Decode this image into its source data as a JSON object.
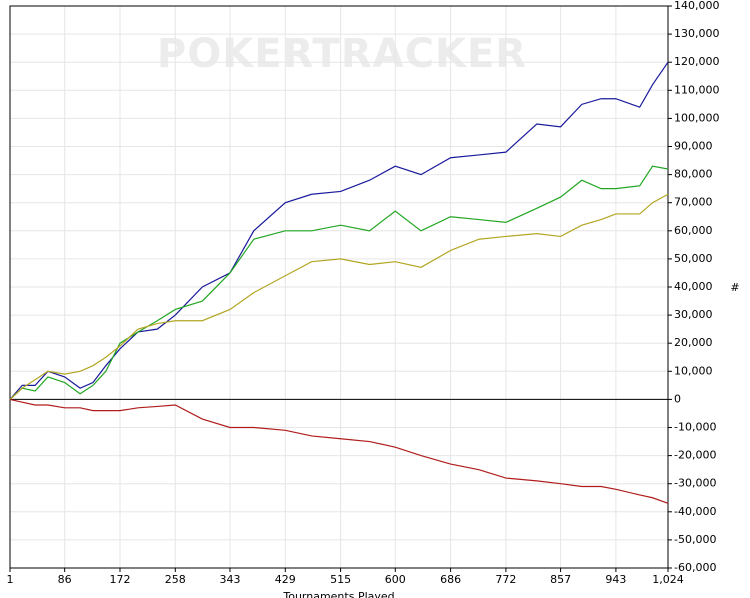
{
  "chart_data": {
    "type": "line",
    "watermark": "POKERTRACKER",
    "xlabel": "Tournaments Played",
    "ylabel": "#",
    "x": [
      1,
      20,
      40,
      60,
      86,
      110,
      130,
      150,
      172,
      200,
      230,
      258,
      300,
      343,
      380,
      429,
      470,
      515,
      560,
      600,
      640,
      686,
      730,
      772,
      820,
      857,
      890,
      920,
      943,
      980,
      1000,
      1024
    ],
    "series": [
      {
        "color": "#1a1a9c",
        "values": [
          0,
          5000,
          5000,
          10000,
          8000,
          4000,
          6000,
          12000,
          18000,
          24000,
          25000,
          30000,
          40000,
          45000,
          60000,
          70000,
          73000,
          74000,
          78000,
          83000,
          80000,
          86000,
          87000,
          88000,
          98000,
          97000,
          105000,
          107000,
          107000,
          104000,
          112000,
          120000
        ]
      },
      {
        "color": "#22a622",
        "values": [
          0,
          4000,
          3000,
          8000,
          6000,
          2000,
          5000,
          10000,
          20000,
          24000,
          28000,
          32000,
          35000,
          45000,
          57000,
          60000,
          60000,
          62000,
          60000,
          67000,
          60000,
          65000,
          64000,
          63000,
          68000,
          72000,
          78000,
          75000,
          75000,
          76000,
          83000,
          82000
        ]
      },
      {
        "color": "#b3a623",
        "values": [
          0,
          4000,
          7000,
          10000,
          9000,
          10000,
          12000,
          15000,
          19000,
          25000,
          27000,
          28000,
          28000,
          32000,
          38000,
          44000,
          49000,
          50000,
          48000,
          49000,
          47000,
          53000,
          57000,
          58000,
          59000,
          58000,
          62000,
          64000,
          66000,
          66000,
          70000,
          73000
        ]
      },
      {
        "color": "#b01c1c",
        "values": [
          0,
          -1000,
          -2000,
          -2000,
          -3000,
          -3000,
          -4000,
          -4000,
          -4000,
          -3000,
          -2500,
          -2000,
          -7000,
          -10000,
          -10000,
          -11000,
          -13000,
          -14000,
          -15000,
          -17000,
          -20000,
          -23000,
          -25000,
          -28000,
          -29000,
          -30000,
          -31000,
          -31000,
          -32000,
          -34000,
          -35000,
          -37000
        ]
      }
    ],
    "xlim": [
      1,
      1024
    ],
    "xticks": [
      1,
      86,
      172,
      258,
      343,
      429,
      515,
      600,
      686,
      772,
      857,
      943,
      {
        "value": 1024,
        "label": "1,024"
      }
    ],
    "ylim": [
      -60000,
      140000
    ],
    "yticks": [
      {
        "value": 140000,
        "label": "140,000"
      },
      {
        "value": 130000,
        "label": "130,000"
      },
      {
        "value": 120000,
        "label": "120,000"
      },
      {
        "value": 110000,
        "label": "110,000"
      },
      {
        "value": 100000,
        "label": "100,000"
      },
      {
        "value": 90000,
        "label": "90,000"
      },
      {
        "value": 80000,
        "label": "80,000"
      },
      {
        "value": 70000,
        "label": "70,000"
      },
      {
        "value": 60000,
        "label": "60,000"
      },
      {
        "value": 50000,
        "label": "50,000"
      },
      {
        "value": 40000,
        "label": "40,000"
      },
      {
        "value": 30000,
        "label": "30,000"
      },
      {
        "value": 20000,
        "label": "20,000"
      },
      {
        "value": 10000,
        "label": "10,000"
      },
      0,
      {
        "value": -10000,
        "label": "-10,000"
      },
      {
        "value": -20000,
        "label": "-20,000"
      },
      {
        "value": -30000,
        "label": "-30,000"
      },
      {
        "value": -40000,
        "label": "-40,000"
      },
      {
        "value": -50000,
        "label": "-50,000"
      },
      {
        "value": -60000,
        "label": "-60,000"
      }
    ],
    "grid": true
  }
}
